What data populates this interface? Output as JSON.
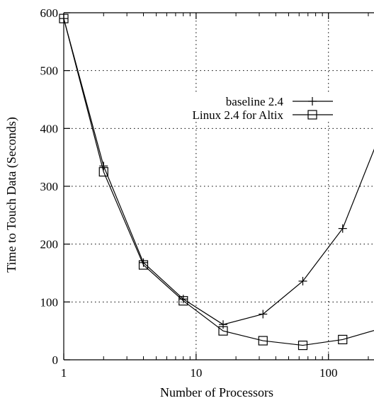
{
  "chart_data": {
    "type": "line",
    "title": "",
    "xlabel": "Number of Processors",
    "ylabel": "Time to Touch Data (Seconds)",
    "xscale": "log",
    "xlim": [
      1,
      256
    ],
    "ylim": [
      0,
      600
    ],
    "x_ticks": [
      1,
      10,
      100
    ],
    "x_tick_labels": [
      "1",
      "10",
      "100"
    ],
    "y_ticks": [
      0,
      100,
      200,
      300,
      400,
      500,
      600
    ],
    "y_tick_labels": [
      "0",
      "100",
      "200",
      "300",
      "400",
      "500",
      "600"
    ],
    "grid": true,
    "legend_position": "top-right",
    "series": [
      {
        "name": "baseline 2.4",
        "marker": "plus",
        "x": [
          1,
          2,
          4,
          8,
          16,
          32,
          64,
          128,
          256
        ],
        "y": [
          590,
          335,
          168,
          105,
          61,
          79,
          136,
          227,
          400
        ]
      },
      {
        "name": "Linux 2.4 for Altix",
        "marker": "square",
        "x": [
          1,
          2,
          4,
          8,
          16,
          32,
          64,
          128,
          256
        ],
        "y": [
          590,
          325,
          164,
          102,
          50,
          33,
          25,
          35,
          55
        ]
      }
    ]
  }
}
